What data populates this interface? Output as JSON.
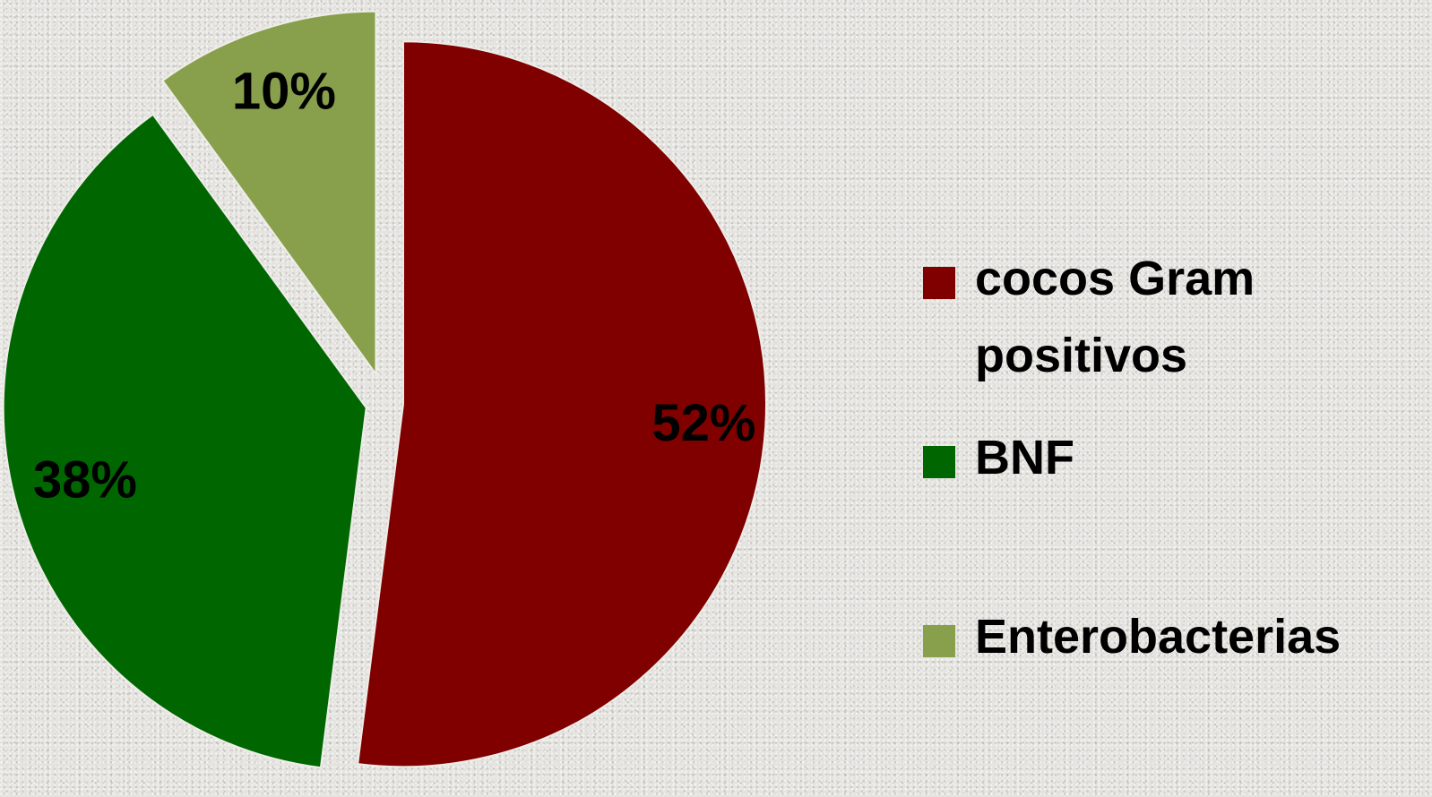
{
  "chart_data": {
    "type": "pie",
    "categories": [
      "cocos Gram positivos",
      "BNF",
      "Enterobacterias"
    ],
    "values": [
      52,
      38,
      10
    ],
    "labels": [
      "52%",
      "38%",
      "10%"
    ],
    "colors": [
      "#800000",
      "#006600",
      "#88a04c"
    ],
    "exploded": true,
    "legend_position": "right",
    "title": ""
  },
  "legend": {
    "items": [
      {
        "label": "cocos Gram positivos",
        "color": "#800000"
      },
      {
        "label": "BNF",
        "color": "#006600"
      },
      {
        "label": "Enterobacterias",
        "color": "#88a04c"
      }
    ]
  }
}
